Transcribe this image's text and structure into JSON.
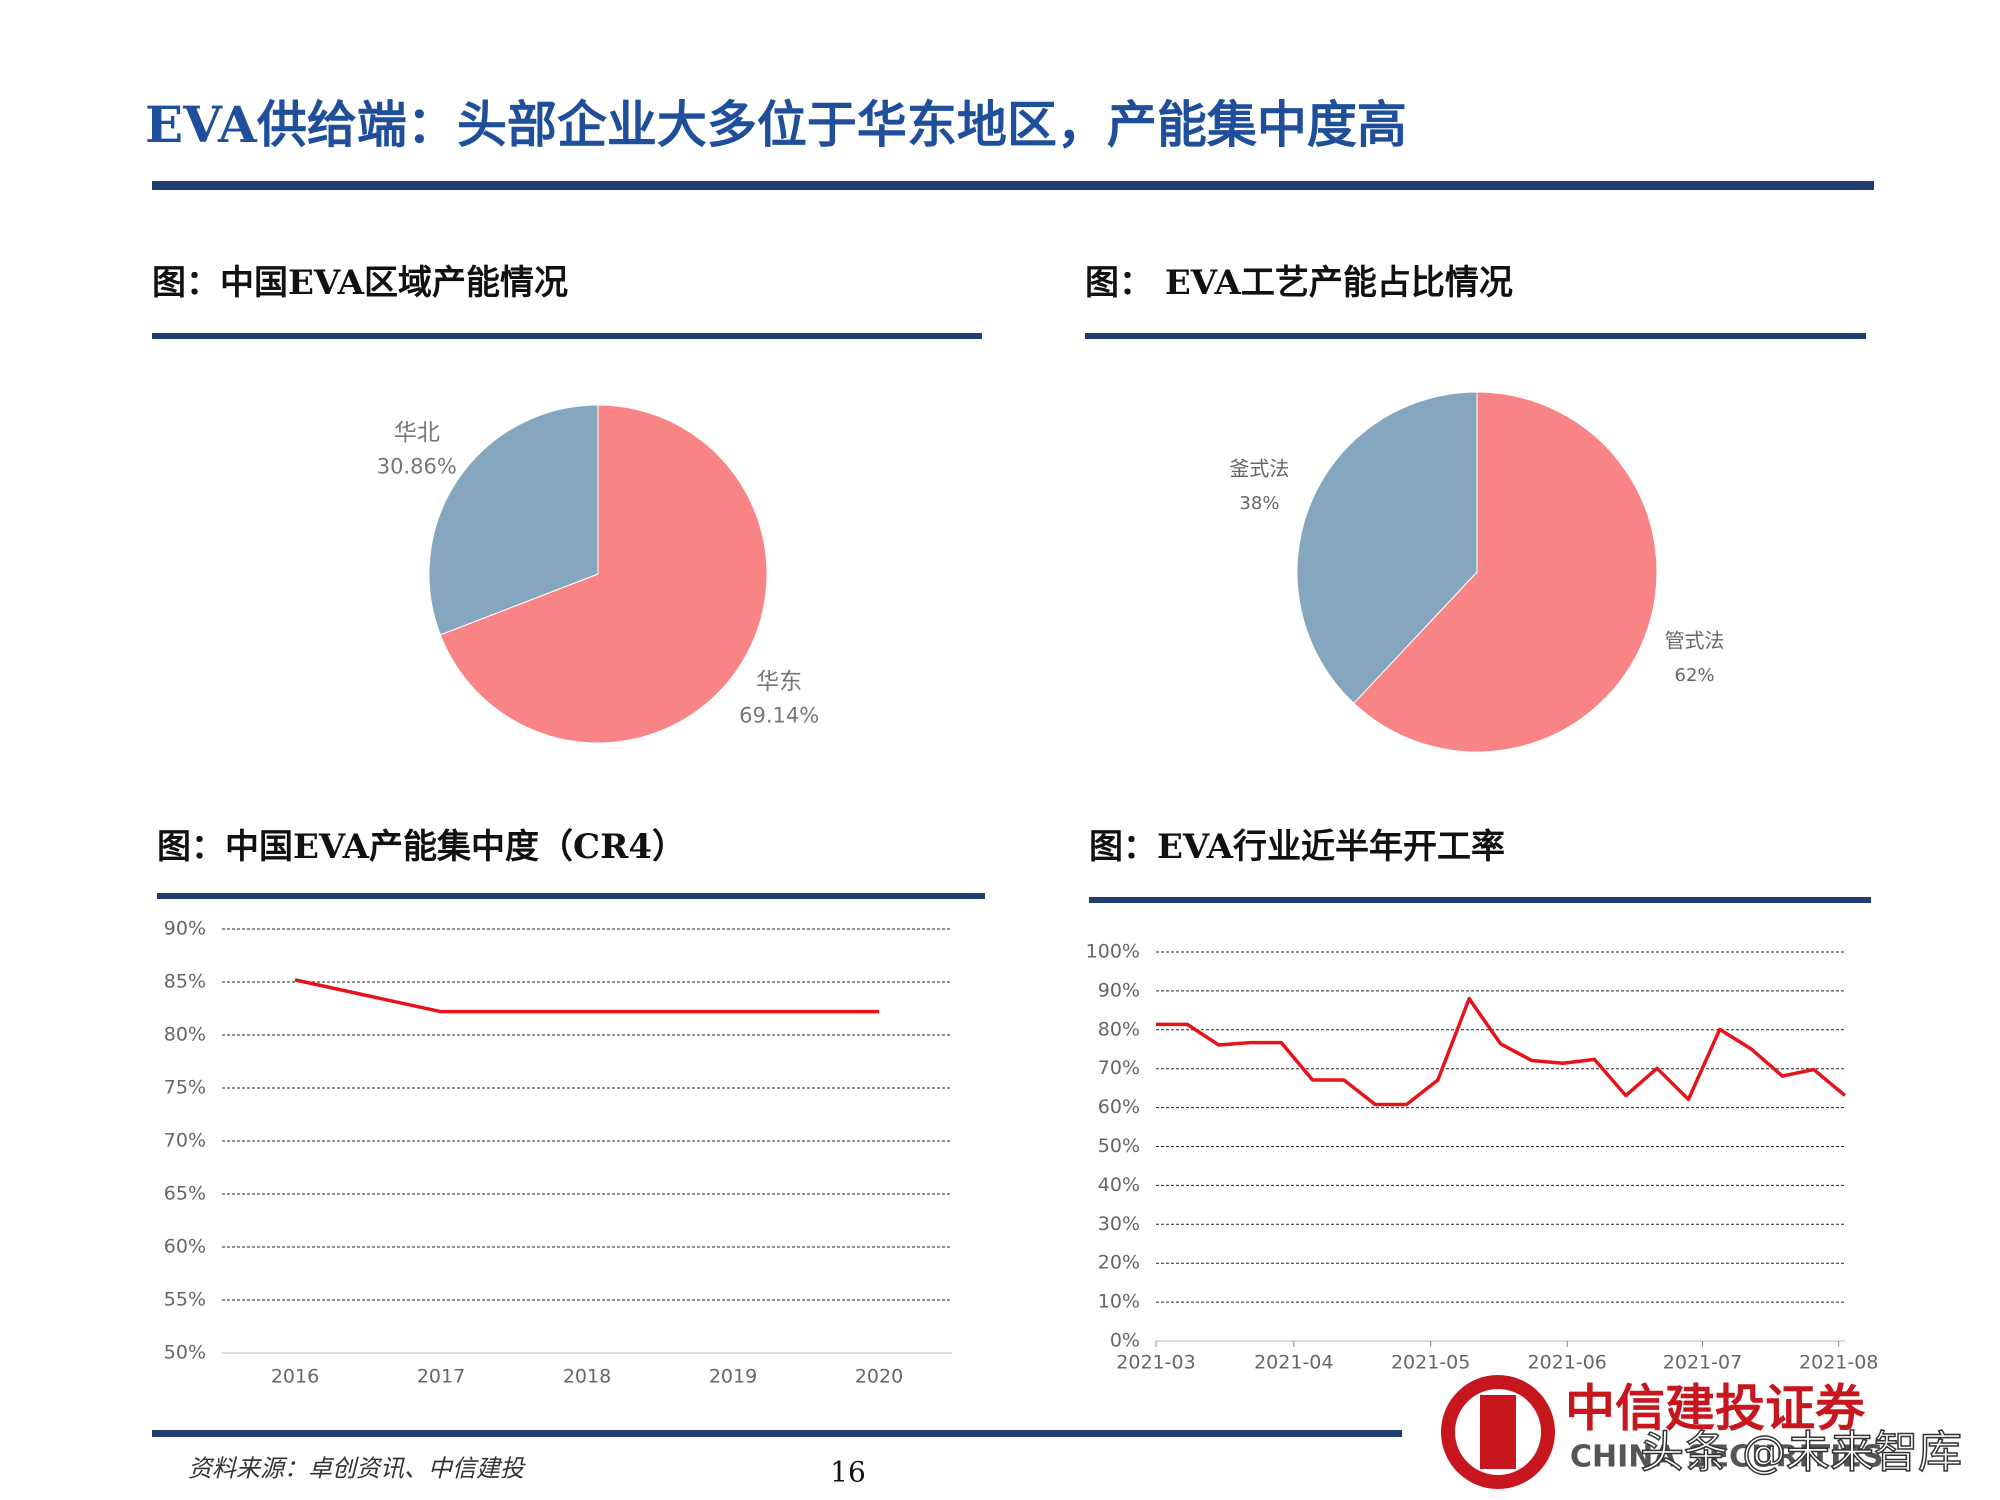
{
  "header": {
    "title": "EVA供给端：头部企业大多位于华东地区，产能集中度高"
  },
  "chart_data": [
    {
      "type": "pie",
      "title": "图：中国EVA区域产能情况",
      "categories": [
        "华东",
        "华北"
      ],
      "values": [
        69.14,
        30.86
      ],
      "value_labels": [
        "69.14%",
        "30.86%"
      ],
      "colors": [
        "#f98485",
        "#84a6bf"
      ]
    },
    {
      "type": "pie",
      "title": "图： EVA工艺产能占比情况",
      "categories": [
        "管式法",
        "釜式法"
      ],
      "values": [
        62,
        38
      ],
      "value_labels": [
        "62%",
        "38%"
      ],
      "colors": [
        "#f98485",
        "#84a6bf"
      ]
    },
    {
      "type": "line",
      "title": "图：中国EVA产能集中度（CR4）",
      "categories": [
        "2016",
        "2017",
        "2018",
        "2019",
        "2020"
      ],
      "values": [
        85.2,
        82.2,
        82.2,
        82.2,
        82.2
      ],
      "color": "#e8121b",
      "ylim": [
        50,
        90
      ],
      "yticks": [
        {
          "value": 50,
          "label": "50%"
        },
        {
          "value": 55,
          "label": "55%"
        },
        {
          "value": 60,
          "label": "60%"
        },
        {
          "value": 65,
          "label": "65%"
        },
        {
          "value": 70,
          "label": "70%"
        },
        {
          "value": 75,
          "label": "75%"
        },
        {
          "value": 80,
          "label": "80%"
        },
        {
          "value": 85,
          "label": "85%"
        },
        {
          "value": 90,
          "label": "90%"
        }
      ],
      "grid": true
    },
    {
      "type": "line",
      "title": "图：EVA行业近半年开工率",
      "x": [
        0,
        1,
        2,
        3,
        4,
        5,
        6,
        7,
        8,
        9,
        10,
        11,
        12,
        13,
        14,
        15,
        16,
        17,
        18,
        19,
        20,
        21,
        22
      ],
      "values": [
        81.4,
        81.4,
        76.1,
        76.7,
        76.7,
        67.1,
        67.1,
        60.8,
        60.8,
        67.1,
        88.0,
        76.4,
        72.1,
        71.4,
        72.4,
        63.1,
        70.1,
        62.1,
        80.1,
        75.1,
        68.1,
        69.8,
        63.1
      ],
      "color": "#e8121b",
      "xlim": [
        0,
        22
      ],
      "xticks": [
        {
          "value": 0,
          "label": "2021-03"
        },
        {
          "value": 4.4,
          "label": "2021-04"
        },
        {
          "value": 8.77,
          "label": "2021-05"
        },
        {
          "value": 13.13,
          "label": "2021-06"
        },
        {
          "value": 17.45,
          "label": "2021-07"
        },
        {
          "value": 21.8,
          "label": "2021-08"
        }
      ],
      "ylim": [
        0,
        100
      ],
      "yticks": [
        {
          "value": 0,
          "label": "0%"
        },
        {
          "value": 10,
          "label": "10%"
        },
        {
          "value": 20,
          "label": "20%"
        },
        {
          "value": 30,
          "label": "30%"
        },
        {
          "value": 40,
          "label": "40%"
        },
        {
          "value": 50,
          "label": "50%"
        },
        {
          "value": 60,
          "label": "60%"
        },
        {
          "value": 70,
          "label": "70%"
        },
        {
          "value": 80,
          "label": "80%"
        },
        {
          "value": 90,
          "label": "90%"
        },
        {
          "value": 100,
          "label": "100%"
        }
      ],
      "grid": true
    }
  ],
  "footer": {
    "source": "资料来源：卓创资讯、中信建投",
    "page": "16",
    "logo": "中信建投证券",
    "logo_sub": "CHINA SECURITIES",
    "watermark": "头条 @未来智库"
  }
}
